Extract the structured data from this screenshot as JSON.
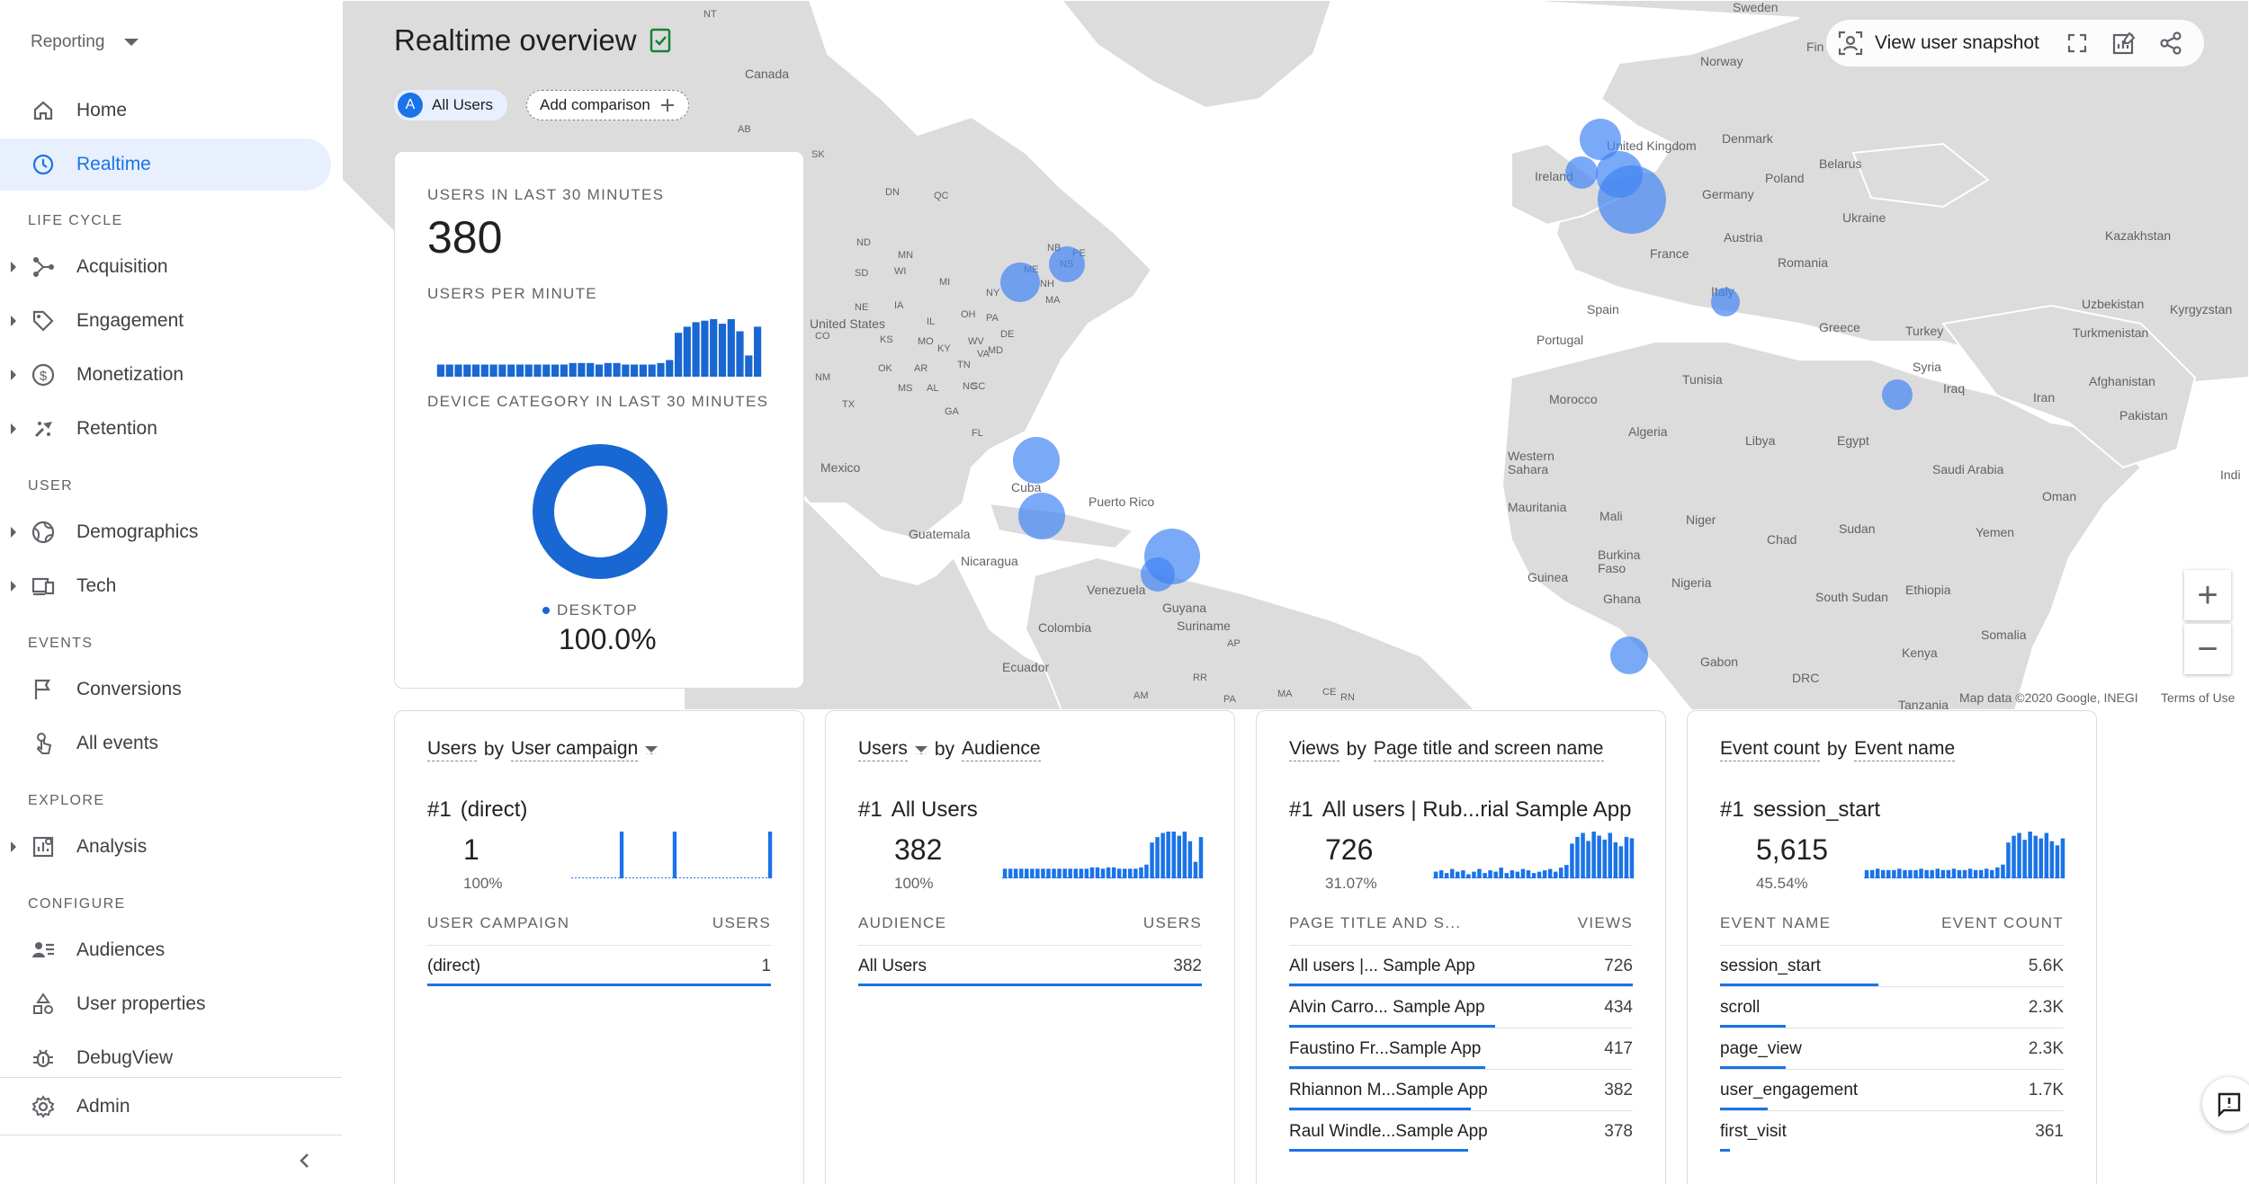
{
  "sidebar": {
    "property": "Reporting",
    "home": "Home",
    "realtime": "Realtime",
    "sections": {
      "life_cycle": "LIFE CYCLE",
      "user": "USER",
      "events": "EVENTS",
      "explore": "EXPLORE",
      "configure": "CONFIGURE"
    },
    "items": {
      "acquisition": "Acquisition",
      "engagement": "Engagement",
      "monetization": "Monetization",
      "retention": "Retention",
      "demographics": "Demographics",
      "tech": "Tech",
      "conversions": "Conversions",
      "all_events": "All events",
      "analysis": "Analysis",
      "audiences": "Audiences",
      "user_properties": "User properties",
      "debugview": "DebugView",
      "admin": "Admin"
    }
  },
  "header": {
    "title": "Realtime overview",
    "chip_all_users": "All Users",
    "chip_avatar": "A",
    "add_comparison": "Add comparison",
    "view_snapshot": "View user snapshot"
  },
  "map": {
    "labels": {
      "canada": "Canada",
      "united_states": "United States",
      "mexico": "Mexico",
      "cuba": "Cuba",
      "puerto_rico": "Puerto Rico",
      "guatemala": "Guatemala",
      "nicaragua": "Nicaragua",
      "venezuela": "Venezuela",
      "colombia": "Colombia",
      "ecuador": "Ecuador",
      "guyana": "Guyana",
      "suriname": "Suriname",
      "ireland": "Ireland",
      "united_kingdom": "United Kingdom",
      "denmark": "Denmark",
      "norway": "Norway",
      "sweden": "Sweden",
      "fin": "Fin",
      "belarus": "Belarus",
      "poland": "Poland",
      "germany": "Germany",
      "ukraine": "Ukraine",
      "austria": "Austria",
      "france": "France",
      "romania": "Romania",
      "kazakhstan": "Kazakhstan",
      "uzbekistan": "Uzbekistan",
      "kyrgyzstan": "Kyrgyzstan",
      "turkmenistan": "Turkmenistan",
      "italy": "Italy",
      "spain": "Spain",
      "portugal": "Portugal",
      "greece": "Greece",
      "turkey": "Turkey",
      "syria": "Syria",
      "iraq": "Iraq",
      "iran": "Iran",
      "afghanistan": "Afghanistan",
      "pakistan": "Pakistan",
      "tunisia": "Tunisia",
      "morocco": "Morocco",
      "algeria": "Algeria",
      "libya": "Libya",
      "egypt": "Egypt",
      "saudi_arabia": "Saudi Arabia",
      "oman": "Oman",
      "yemen": "Yemen",
      "western_sahara": "Western Sahara",
      "mauritania": "Mauritania",
      "mali": "Mali",
      "niger": "Niger",
      "chad": "Chad",
      "sudan": "Sudan",
      "burkina_faso": "Burkina Faso",
      "guinea": "Guinea",
      "ghana": "Ghana",
      "nigeria": "Nigeria",
      "south_sudan": "South Sudan",
      "ethiopia": "Ethiopia",
      "somalia": "Somalia",
      "kenya": "Kenya",
      "gabon": "Gabon",
      "drc": "DRC",
      "tanzania": "Tanzania",
      "indi": "Indi",
      "states": [
        "NT",
        "AB",
        "SK",
        "DN",
        "QC",
        "ND",
        "MN",
        "SD",
        "WI",
        "MI",
        "NE",
        "IA",
        "NY",
        "ME",
        "NB",
        "NS",
        "PE",
        "NH",
        "MA",
        "IL",
        "OH",
        "PA",
        "CO",
        "KS",
        "MO",
        "KY",
        "WV",
        "VA",
        "MD",
        "DE",
        "OK",
        "AR",
        "TN",
        "NC",
        "NM",
        "TX",
        "MS",
        "AL",
        "GA",
        "SC",
        "FL",
        "RR",
        "AP",
        "AM",
        "PA",
        "MA",
        "CE",
        "RN"
      ]
    },
    "footer_data": "Map data ©2020 Google, INEGI",
    "footer_terms": "Terms of Use",
    "zoom_in": "+",
    "zoom_out": "−"
  },
  "summary": {
    "users_label": "USERS IN LAST 30 MINUTES",
    "users_value": "380",
    "upm_label": "USERS PER MINUTE",
    "upm_bars": [
      8,
      8,
      8,
      8,
      8,
      8,
      8,
      8,
      8,
      8,
      8,
      8,
      8,
      8,
      8,
      9,
      9,
      9,
      8,
      9,
      9,
      8,
      8,
      8,
      8,
      9,
      11,
      29,
      33,
      36,
      37,
      38,
      35,
      38,
      30,
      14,
      33
    ],
    "device_label": "DEVICE CATEGORY IN LAST 30 MINUTES",
    "device_name": "DESKTOP",
    "device_pct": "100.0%",
    "accent": "#1967d2"
  },
  "cards": [
    {
      "metric": "Users",
      "dimension": "User campaign",
      "metric_dropdown": false,
      "dimension_dropdown": true,
      "rank": "#1",
      "top_name": "(direct)",
      "top_value": "1",
      "top_pct": "100%",
      "spark": [
        0,
        0,
        0,
        0,
        0,
        0,
        0,
        0,
        0,
        1,
        0,
        0,
        0,
        0,
        0,
        0,
        0,
        0,
        0,
        1,
        0,
        0,
        0,
        0,
        0,
        0,
        0,
        0,
        0,
        0,
        0,
        0,
        0,
        0,
        0,
        0,
        0,
        1
      ],
      "col1": "USER CAMPAIGN",
      "col2": "USERS",
      "rows": [
        {
          "name": "(direct)",
          "value": "1",
          "fill": 1.0
        }
      ]
    },
    {
      "metric": "Users",
      "dimension": "Audience",
      "metric_dropdown": true,
      "dimension_dropdown": false,
      "rank": "#1",
      "top_name": "All Users",
      "top_value": "382",
      "top_pct": "100%",
      "spark": [
        7,
        7,
        7,
        7,
        7,
        7,
        7,
        7,
        7,
        7,
        7,
        7,
        7,
        7,
        7,
        7,
        8,
        8,
        7,
        8,
        8,
        7,
        7,
        7,
        7,
        8,
        10,
        26,
        30,
        33,
        34,
        34,
        31,
        34,
        27,
        12,
        30
      ],
      "col1": "AUDIENCE",
      "col2": "USERS",
      "rows": [
        {
          "name": "All Users",
          "value": "382",
          "fill": 1.0
        }
      ]
    },
    {
      "metric": "Views",
      "dimension": "Page title and screen name",
      "metric_dropdown": false,
      "dimension_dropdown": false,
      "rank": "#1",
      "top_name": "All users | Rub...rial Sample App",
      "top_value": "726",
      "top_pct": "31.07%",
      "spark": [
        5,
        6,
        4,
        7,
        5,
        6,
        3,
        5,
        7,
        4,
        6,
        5,
        8,
        4,
        6,
        5,
        7,
        6,
        4,
        5,
        6,
        7,
        5,
        8,
        10,
        26,
        31,
        34,
        28,
        35,
        32,
        29,
        34,
        27,
        24,
        31,
        30
      ],
      "col1": "PAGE TITLE AND S...",
      "col2": "VIEWS",
      "rows": [
        {
          "name": "All users |... Sample App",
          "value": "726",
          "fill": 1.0
        },
        {
          "name": "Alvin Carro... Sample App",
          "value": "434",
          "fill": 0.6
        },
        {
          "name": "Faustino Fr...Sample App",
          "value": "417",
          "fill": 0.57
        },
        {
          "name": "Rhiannon M...Sample App",
          "value": "382",
          "fill": 0.53
        },
        {
          "name": "Raul Windle...Sample App",
          "value": "378",
          "fill": 0.52
        }
      ]
    },
    {
      "metric": "Event count",
      "dimension": "Event name",
      "metric_dropdown": false,
      "dimension_dropdown": false,
      "rank": "#1",
      "top_name": "session_start",
      "top_value": "5,615",
      "top_pct": "45.54%",
      "spark": [
        6,
        6,
        7,
        6,
        6,
        6,
        7,
        6,
        6,
        6,
        7,
        6,
        6,
        7,
        6,
        6,
        7,
        6,
        6,
        7,
        6,
        6,
        7,
        6,
        8,
        10,
        26,
        31,
        33,
        28,
        34,
        31,
        29,
        33,
        27,
        24,
        29
      ],
      "col1": "EVENT NAME",
      "col2": "EVENT COUNT",
      "rows": [
        {
          "name": "session_start",
          "value": "5.6K",
          "fill": 0.46
        },
        {
          "name": "scroll",
          "value": "2.3K",
          "fill": 0.19
        },
        {
          "name": "page_view",
          "value": "2.3K",
          "fill": 0.19
        },
        {
          "name": "user_engagement",
          "value": "1.7K",
          "fill": 0.14
        },
        {
          "name": "first_visit",
          "value": "361",
          "fill": 0.03
        }
      ]
    }
  ]
}
